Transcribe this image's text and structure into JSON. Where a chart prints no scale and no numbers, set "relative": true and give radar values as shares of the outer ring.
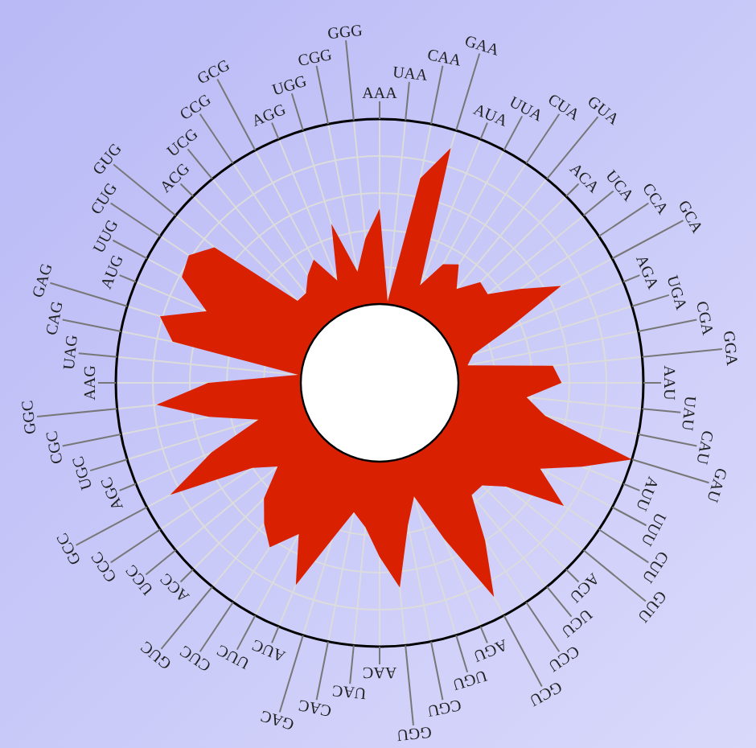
{
  "chart_data": {
    "type": "radar",
    "relative": true,
    "grid": true,
    "categories": [
      "AAA",
      "UAA",
      "CAA",
      "GAA",
      "AUA",
      "UUA",
      "CUA",
      "GUA",
      "ACA",
      "UCA",
      "CCA",
      "GCA",
      "AGA",
      "UGA",
      "CGA",
      "GGA",
      "AAU",
      "UAU",
      "CAU",
      "GAU",
      "AUU",
      "UUU",
      "CUU",
      "GUU",
      "ACU",
      "UCU",
      "CCU",
      "GCU",
      "AGU",
      "UGU",
      "CGU",
      "GGU",
      "AAC",
      "UAC",
      "CAC",
      "GAC",
      "AUC",
      "UUC",
      "CUC",
      "GUC",
      "ACC",
      "UCC",
      "CCC",
      "GCC",
      "AGC",
      "UGC",
      "CGC",
      "GGC",
      "AAG",
      "UAG",
      "CAG",
      "GAG",
      "AUG",
      "UUG",
      "CUG",
      "GUG",
      "ACG",
      "UCG",
      "CCG",
      "GCG",
      "AGG",
      "UGG",
      "CGG",
      "GGG"
    ],
    "series": [
      {
        "color": "#d92000",
        "values": [
          0.66,
          0.31,
          0.79,
          0.93,
          0.4,
          0.51,
          0.54,
          0.46,
          0.54,
          0.53,
          0.64,
          0.78,
          0.52,
          0.37,
          0.34,
          0.66,
          0.69,
          0.56,
          0.64,
          1.0,
          0.83,
          0.69,
          0.84,
          0.62,
          0.55,
          0.55,
          0.72,
          0.92,
          0.64,
          0.45,
          0.55,
          0.78,
          0.66,
          0.55,
          0.5,
          0.62,
          0.83,
          0.65,
          0.75,
          0.69,
          0.62,
          0.5,
          0.58,
          0.9,
          0.69,
          0.48,
          0.66,
          0.85,
          0.65,
          0.31,
          0.8,
          0.87,
          0.71,
          0.85,
          0.87,
          0.81,
          0.44,
          0.44,
          0.49,
          0.53,
          0.42,
          0.63,
          0.43,
          0.55
        ]
      }
    ]
  }
}
